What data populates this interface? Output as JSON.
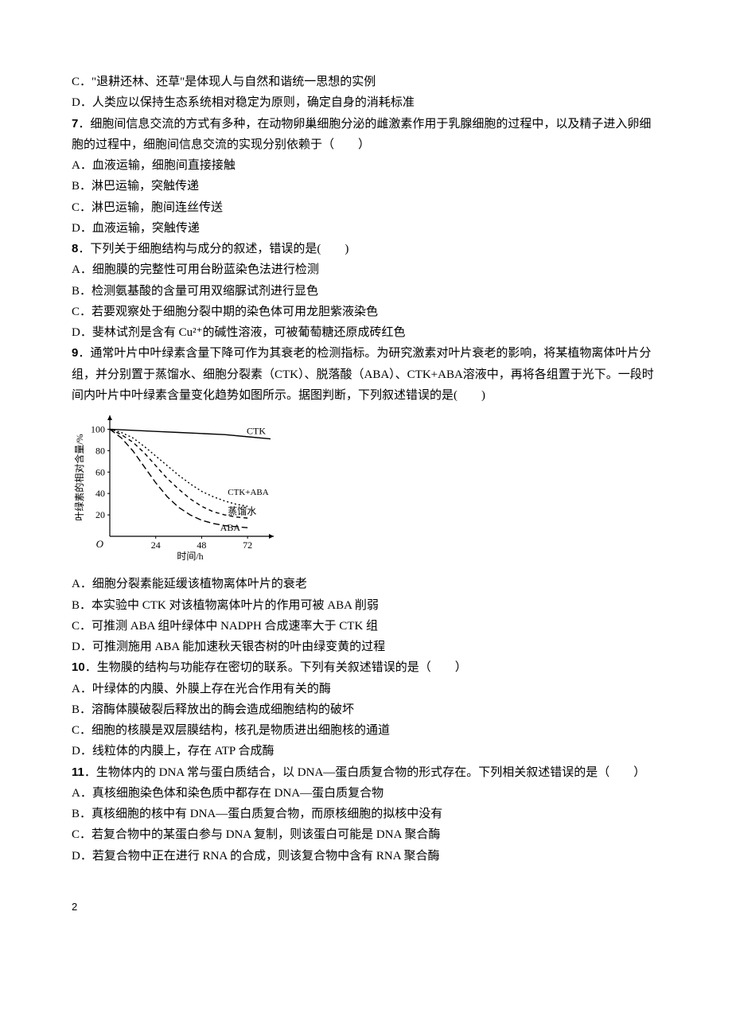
{
  "q6": {
    "opts": {
      "C": "C．\"退耕还林、还草\"是体现人与自然和谐统一思想的实例",
      "D": "D．人类应以保持生态系统相对稳定为原则，确定自身的消耗标准"
    }
  },
  "q7": {
    "num": "7",
    "stem": "．细胞间信息交流的方式有多种，在动物卵巢细胞分泌的雌激素作用于乳腺细胞的过程中，以及精子进入卵细胞的过程中，细胞间信息交流的实现分别依赖于（　　）",
    "opts": {
      "A": "A．血液运输，细胞间直接接触",
      "B": "B．淋巴运输，突触传递",
      "C": "C．淋巴运输，胞间连丝传送",
      "D": "D．血液运输，突触传递"
    }
  },
  "q8": {
    "num": "8",
    "stem": "．下列关于细胞结构与成分的叙述，错误的是(　　)",
    "opts": {
      "A": "A．细胞膜的完整性可用台盼蓝染色法进行检测",
      "B": "B．检测氨基酸的含量可用双缩脲试剂进行显色",
      "C": "C．若要观察处于细胞分裂中期的染色体可用龙胆紫液染色",
      "D": "D．斐林试剂是含有 Cu²⁺的碱性溶液，可被葡萄糖还原成砖红色"
    }
  },
  "q9": {
    "num": "9",
    "stem": "．通常叶片中叶绿素含量下降可作为其衰老的检测指标。为研究激素对叶片衰老的影响，将某植物离体叶片分组，并分别置于蒸馏水、细胞分裂素（CTK）、脱落酸（ABA）、CTK+ABA溶液中，再将各组置于光下。一段时间内叶片中叶绿素含量变化趋势如图所示。据图判断，下列叙述错误的是(　　)",
    "opts": {
      "A": "A．细胞分裂素能延缓该植物离体叶片的衰老",
      "B": "B．本实验中 CTK 对该植物离体叶片的作用可被 ABA 削弱",
      "C": "C．可推测 ABA 组叶绿体中 NADPH 合成速率大于 CTK 组",
      "D": "D．可推测施用 ABA 能加速秋天银杏树的叶由绿变黄的过程"
    }
  },
  "q10": {
    "num": "10",
    "stem": "．生物膜的结构与功能存在密切的联系。下列有关叙述错误的是（　　）",
    "opts": {
      "A": "A．叶绿体的内膜、外膜上存在光合作用有关的酶",
      "B": "B．溶酶体膜破裂后释放出的酶会造成细胞结构的破坏",
      "C": "C．细胞的核膜是双层膜结构，核孔是物质进出细胞核的通道",
      "D": "D．线粒体的内膜上，存在 ATP 合成酶"
    }
  },
  "q11": {
    "num": "11",
    "stem": "．生物体内的 DNA 常与蛋白质结合，以 DNA—蛋白质复合物的形式存在。下列相关叙述错误的是（　　）",
    "opts": {
      "A": "A．真核细胞染色体和染色质中都存在 DNA—蛋白质复合物",
      "B": "B．真核细胞的核中有 DNA—蛋白质复合物，而原核细胞的拟核中没有",
      "C": "C．若复合物中的某蛋白参与 DNA 复制，则该蛋白可能是 DNA 聚合酶",
      "D": "D．若复合物中正在进行 RNA 的合成，则该复合物中含有 RNA 聚合酶"
    }
  },
  "chart": {
    "ylabel": "叶绿素的相对含量/%",
    "xlabel": "时间/h",
    "xlim": [
      0,
      84
    ],
    "ylim": [
      0,
      110
    ],
    "yticks": [
      20,
      40,
      60,
      80,
      100
    ],
    "xticks": [
      24,
      48,
      72
    ],
    "axis_color": "#000000",
    "line_color": "#000000",
    "text_color": "#000000",
    "background": "#ffffff",
    "series": {
      "CTK": {
        "label": "CTK",
        "dash": "none",
        "points": [
          [
            0,
            100
          ],
          [
            12,
            99
          ],
          [
            24,
            98
          ],
          [
            36,
            97
          ],
          [
            48,
            96
          ],
          [
            60,
            95
          ],
          [
            72,
            93
          ],
          [
            84,
            91
          ]
        ]
      },
      "CTK_ABA": {
        "label": "CTK+ABA",
        "dash": "2,3",
        "points": [
          [
            0,
            100
          ],
          [
            6,
            97
          ],
          [
            12,
            92
          ],
          [
            18,
            84
          ],
          [
            24,
            75
          ],
          [
            30,
            66
          ],
          [
            36,
            57
          ],
          [
            42,
            49
          ],
          [
            48,
            42
          ],
          [
            54,
            37
          ],
          [
            60,
            33
          ],
          [
            66,
            30
          ],
          [
            72,
            28
          ]
        ]
      },
      "DW": {
        "label": "蒸馏水",
        "dash": "5,4",
        "points": [
          [
            0,
            100
          ],
          [
            6,
            95
          ],
          [
            12,
            88
          ],
          [
            18,
            78
          ],
          [
            24,
            66
          ],
          [
            30,
            54
          ],
          [
            36,
            44
          ],
          [
            42,
            35
          ],
          [
            48,
            28
          ],
          [
            54,
            23
          ],
          [
            60,
            20
          ],
          [
            66,
            18
          ],
          [
            72,
            17
          ]
        ]
      },
      "ABA": {
        "label": "ABA",
        "dash": "8,4",
        "points": [
          [
            0,
            100
          ],
          [
            6,
            92
          ],
          [
            12,
            80
          ],
          [
            18,
            65
          ],
          [
            24,
            50
          ],
          [
            30,
            37
          ],
          [
            36,
            27
          ],
          [
            42,
            20
          ],
          [
            48,
            15
          ],
          [
            54,
            12
          ],
          [
            60,
            10
          ],
          [
            66,
            9
          ],
          [
            72,
            8
          ]
        ]
      }
    }
  },
  "pageNumber": "2"
}
